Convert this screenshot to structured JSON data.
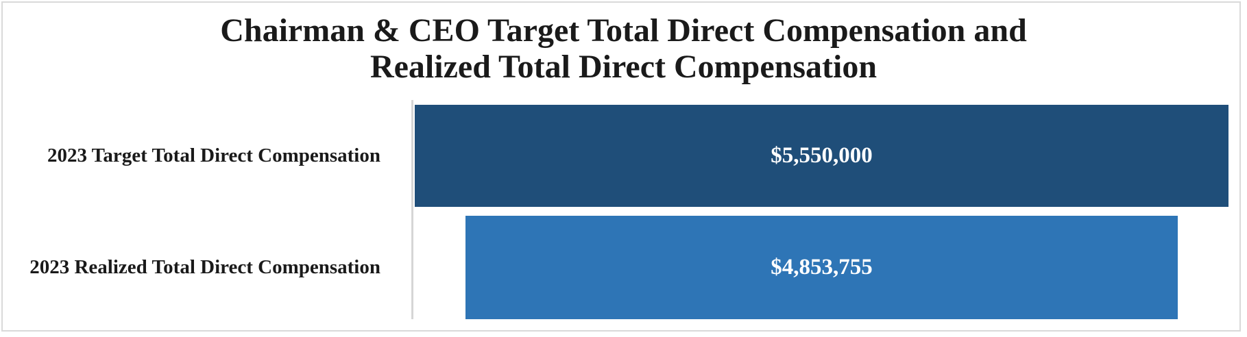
{
  "chart_data": {
    "type": "bar",
    "orientation": "horizontal",
    "title": "Chairman & CEO Target Total Direct Compensation and Realized Total Direct Compensation",
    "title_lines": [
      "Chairman & CEO Target Total Direct Compensation and",
      "Realized Total Direct Compensation"
    ],
    "categories": [
      "2023 Target Total Direct Compensation",
      "2023 Realized Total Direct Compensation"
    ],
    "values": [
      5550000,
      4853755
    ],
    "value_labels": [
      "$5,550,000",
      "$4,853,755"
    ],
    "series_colors": [
      "#1F4E79",
      "#2E75B6"
    ],
    "value_label_color": "#FFFFFF",
    "category_label_color": "#1A1A1A",
    "title_color": "#1A1A1A",
    "axis_line_color": "#D6D6D6",
    "frame_border_color": "#D9D9D9",
    "bar_alignment": "center",
    "xlim": [
      0,
      5550000
    ],
    "gridlines": false,
    "legend": false,
    "x_axis_labels": false
  }
}
